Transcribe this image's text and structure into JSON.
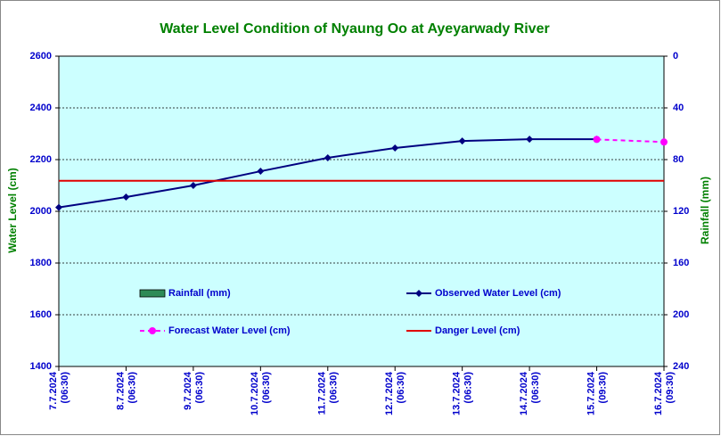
{
  "chart_data": {
    "type": "line",
    "title": "Water Level Condition of Nyaung Oo at Ayeyarwady River",
    "y_label": "Water Level (cm)",
    "y2_label": "Rainfall (mm)",
    "categories": [
      "7.7.2024",
      "8.7.2024",
      "9.7.2024",
      "10.7.2024",
      "11.7.2024",
      "12.7.2024",
      "13.7.2024",
      "14.7.2024",
      "15.7.2024",
      "16.7.2024"
    ],
    "times": [
      "(06:30)",
      "(06:30)",
      "(06:30)",
      "(06:30)",
      "(06:30)",
      "(06:30)",
      "(06:30)",
      "(06:30)",
      "(09:30)",
      "(09:30)"
    ],
    "ylim": [
      1400,
      2600
    ],
    "yticks": [
      1400,
      1600,
      1800,
      2000,
      2200,
      2400,
      2600
    ],
    "y2lim": [
      240,
      0
    ],
    "y2ticks": [
      0,
      40,
      80,
      120,
      160,
      200,
      240
    ],
    "grid": true,
    "series": [
      {
        "name": "Rainfall (mm)",
        "color": "#2e8b57",
        "kind": "bar",
        "axis": "y2",
        "values": [
          null,
          null,
          null,
          null,
          null,
          null,
          null,
          null,
          null,
          null
        ]
      },
      {
        "name": "Observed Water Level (cm)",
        "color": "#000080",
        "kind": "line",
        "values": [
          2015,
          2055,
          2100,
          2155,
          2207,
          2245,
          2272,
          2279,
          2279,
          null
        ]
      },
      {
        "name": "Forecast Water Level (cm)",
        "color": "#ff00ff",
        "kind": "dashed",
        "values": [
          null,
          null,
          null,
          null,
          null,
          null,
          null,
          null,
          2278,
          2268
        ]
      },
      {
        "name": "Danger Level (cm)",
        "color": "#e00000",
        "kind": "level",
        "values": [
          2118,
          2118,
          2118,
          2118,
          2118,
          2118,
          2118,
          2118,
          2118,
          2118
        ]
      }
    ]
  }
}
